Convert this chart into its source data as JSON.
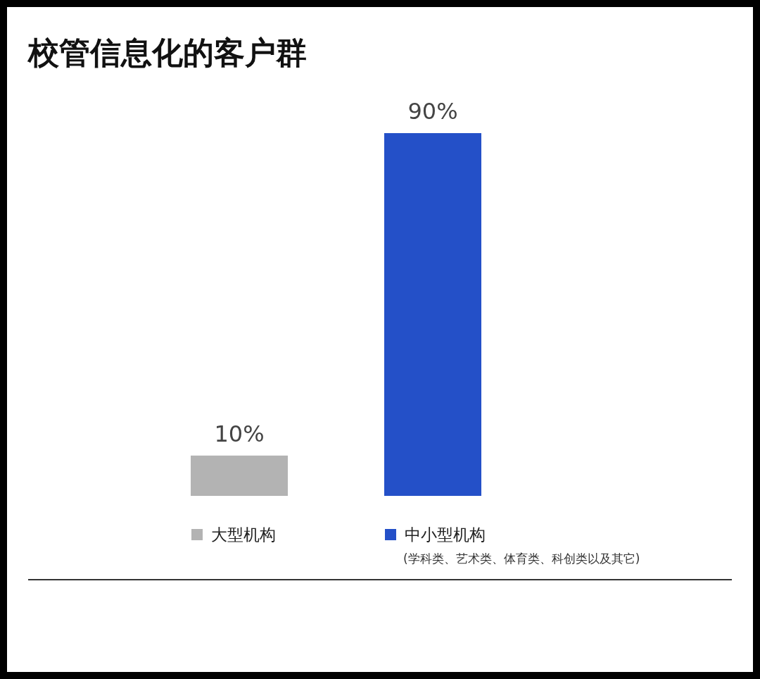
{
  "chart_data": {
    "type": "bar",
    "title": "校管信息化的客户群",
    "categories": [
      "大型机构",
      "中小型机构"
    ],
    "values": [
      10,
      90
    ],
    "colors": [
      "#b3b3b3",
      "#2450c8"
    ],
    "value_labels": [
      "10%",
      "90%"
    ],
    "annotations": [
      "(学科类、艺术类、体育类、科创类以及其它)"
    ]
  }
}
